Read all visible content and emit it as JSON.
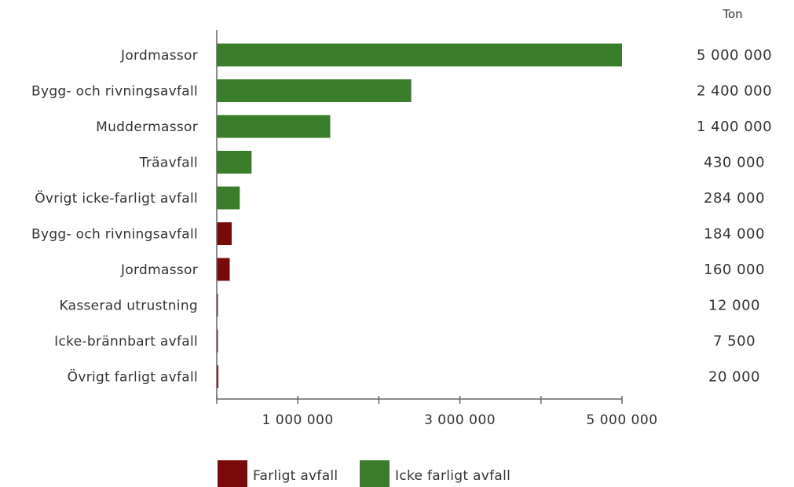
{
  "chart_data": {
    "type": "bar",
    "orientation": "horizontal",
    "unit": "Ton",
    "categories": [
      "Jordmassor",
      "Bygg- och rivningsavfall",
      "Muddermassor",
      "Träavfall",
      "Övrigt icke-farligt avfall",
      "Bygg- och rivningsavfall",
      "Jordmassor",
      "Kasserad utrustning",
      "Icke-brännbart avfall",
      "Övrigt farligt avfall"
    ],
    "values": [
      5000000,
      2400000,
      1400000,
      430000,
      284000,
      184000,
      160000,
      12000,
      7500,
      20000
    ],
    "value_labels": [
      "5 000 000",
      "2 400 000",
      "1 400 000",
      "430 000",
      "284 000",
      "184 000",
      "160 000",
      "12 000",
      "7 500",
      "20 000"
    ],
    "series_of_bar": [
      "icke",
      "icke",
      "icke",
      "icke",
      "icke",
      "farligt",
      "farligt",
      "farligt",
      "farligt",
      "farligt"
    ],
    "series": [
      {
        "key": "farligt",
        "name": "Farligt avfall",
        "color": "#7a0a0a"
      },
      {
        "key": "icke",
        "name": "Icke farligt avfall",
        "color": "#3a7d2a"
      }
    ],
    "xlim": [
      0,
      5000000
    ],
    "xticks": [
      1000000,
      3000000,
      5000000
    ],
    "xtick_labels": [
      "1 000 000",
      "3 000 000",
      "5 000 000"
    ],
    "xtick_marks": [
      0,
      1000000,
      2000000,
      3000000,
      4000000,
      5000000
    ],
    "grid": false,
    "legend_position": "bottom-left"
  }
}
